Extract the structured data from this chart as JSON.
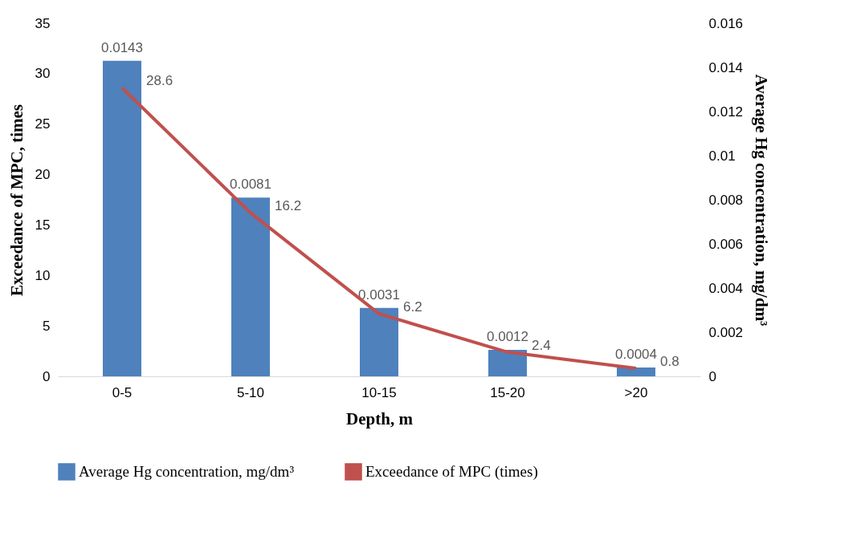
{
  "chart_data": {
    "type": "bar",
    "xlabel": "Depth, m",
    "ylabel": "Exceedance of MPC, times",
    "y2label": "Average Hg concentration, mg/dm³",
    "categories": [
      "0-5",
      "5-10",
      "10-15",
      "15-20",
      ">20"
    ],
    "series": [
      {
        "name": "Average Hg concentration, mg/dm³",
        "axis": "y2",
        "color": "#4f81bd",
        "values": [
          0.0143,
          0.0081,
          0.0031,
          0.0012,
          0.0004
        ]
      },
      {
        "name": "Exceedance of MPC (times)",
        "type": "line",
        "axis": "y",
        "color": "#c0504d",
        "values": [
          28.6,
          16.2,
          6.2,
          2.4,
          0.8
        ]
      }
    ],
    "ylim": [
      0,
      35
    ],
    "yticks": [
      0,
      5,
      10,
      15,
      20,
      25,
      30,
      35
    ],
    "y2lim": [
      0,
      0.016
    ],
    "y2ticks": [
      0,
      0.002,
      0.004,
      0.006,
      0.008,
      0.01,
      0.012,
      0.014,
      0.016
    ],
    "data_labels": true,
    "grid": false,
    "legend": "bottom"
  }
}
